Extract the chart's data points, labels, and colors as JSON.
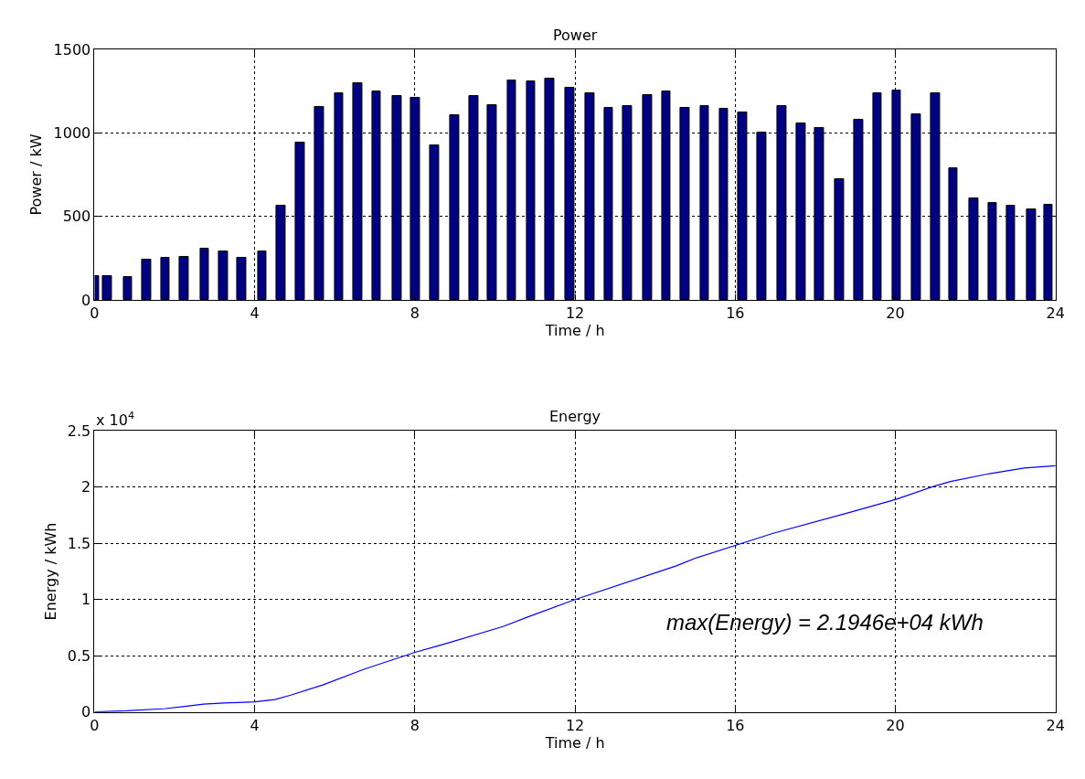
{
  "chart_data": [
    {
      "type": "bar",
      "title": "Power",
      "xlabel": "Time / h",
      "ylabel": "Power / kW",
      "x": [
        0.0,
        0.32,
        0.83,
        1.3,
        1.77,
        2.24,
        2.75,
        3.22,
        3.68,
        4.19,
        4.66,
        5.13,
        5.62,
        6.11,
        6.57,
        7.04,
        7.55,
        8.02,
        8.49,
        9.0,
        9.47,
        9.93,
        10.42,
        10.9,
        11.37,
        11.87,
        12.38,
        12.84,
        13.31,
        13.81,
        14.28,
        14.75,
        15.24,
        15.72,
        16.19,
        16.67,
        17.17,
        17.64,
        18.11,
        18.61,
        19.08,
        19.55,
        20.03,
        20.52,
        21.0,
        21.45,
        21.96,
        22.43,
        22.89,
        23.4,
        23.82
      ],
      "values": [
        145,
        145,
        136,
        241,
        250,
        259,
        306,
        289,
        250,
        289,
        563,
        944,
        1153,
        1239,
        1297,
        1248,
        1222,
        1211,
        925,
        1106,
        1222,
        1164,
        1315,
        1306,
        1326,
        1269,
        1237,
        1152,
        1161,
        1228,
        1247,
        1152,
        1161,
        1142,
        1123,
        1000,
        1161,
        1057,
        1028,
        725,
        1076,
        1237,
        1256,
        1114,
        1237,
        791,
        609,
        583,
        562,
        543,
        571
      ],
      "color": "#000080",
      "xlim": [
        0,
        24
      ],
      "xticks": [
        0,
        4,
        8,
        12,
        16,
        20,
        24
      ],
      "ylim": [
        0,
        1500
      ],
      "yticks": [
        0,
        500,
        1000,
        1500
      ],
      "grid": true
    },
    {
      "type": "line",
      "title": "Energy",
      "xlabel": "Time / h",
      "ylabel": "Energy / kWh",
      "x": [
        0,
        0.8,
        1.77,
        2.25,
        2.72,
        3.24,
        4.0,
        4.5,
        4.9,
        5.7,
        6.73,
        8.0,
        8.6,
        10.2,
        10.86,
        12.0,
        14.53,
        15.02,
        16.95,
        18.8,
        20.0,
        20.98,
        21.38,
        22.35,
        23.22,
        24.0
      ],
      "values": [
        0,
        0.01,
        0.03,
        0.05,
        0.07,
        0.08,
        0.09,
        0.11,
        0.15,
        0.24,
        0.38,
        0.53,
        0.59,
        0.76,
        0.85,
        1.0,
        1.3,
        1.37,
        1.59,
        1.77,
        1.89,
        2.01,
        2.05,
        2.12,
        2.17,
        2.19
      ],
      "color": "#0000ff",
      "marker": "none",
      "line_style": "solid",
      "xlim": [
        0,
        24
      ],
      "xticks": [
        0,
        4,
        8,
        12,
        16,
        20,
        24
      ],
      "ylim": [
        0,
        2.5
      ],
      "yticks": [
        0,
        0.5,
        1,
        1.5,
        2,
        2.5
      ],
      "grid": true,
      "annotations": [
        "x 10$^{4}$",
        "max(Energy) = 2.1946e+04 kWh"
      ]
    }
  ]
}
